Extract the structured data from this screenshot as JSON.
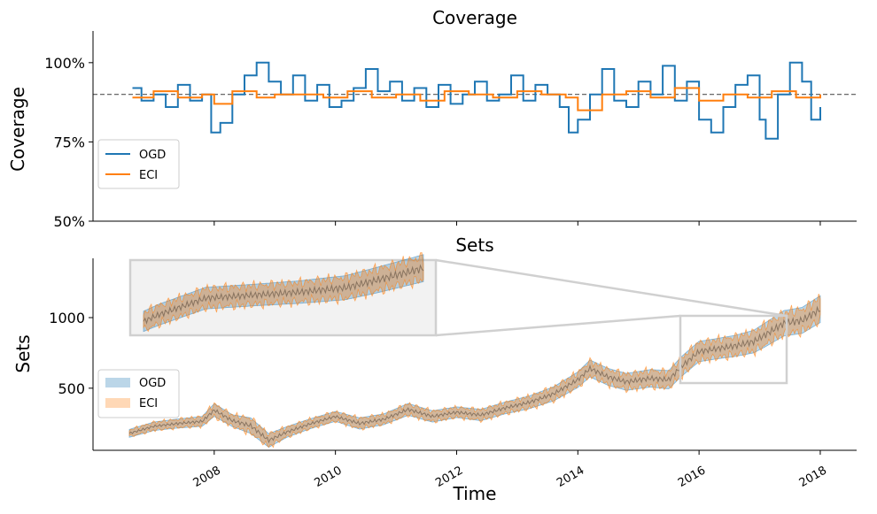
{
  "chart_data": [
    {
      "type": "line",
      "title": "Coverage",
      "xlabel": "",
      "ylabel": "Coverage",
      "xlim": [
        2006.0,
        2018.6
      ],
      "ylim": [
        0.5,
        1.1
      ],
      "yticks": [
        0.5,
        0.75,
        1.0
      ],
      "yticklabels": [
        "50%",
        "75%",
        "100%"
      ],
      "xticks": [
        2008,
        2010,
        2012,
        2014,
        2016,
        2018
      ],
      "reference_line": 0.9,
      "legend": "lower-left",
      "series": [
        {
          "name": "OGD",
          "color": "#1f77b4",
          "x": [
            2006.65,
            2006.8,
            2007.0,
            2007.2,
            2007.4,
            2007.6,
            2007.8,
            2007.95,
            2008.1,
            2008.3,
            2008.5,
            2008.7,
            2008.9,
            2009.1,
            2009.3,
            2009.5,
            2009.7,
            2009.9,
            2010.1,
            2010.3,
            2010.5,
            2010.7,
            2010.9,
            2011.1,
            2011.3,
            2011.5,
            2011.7,
            2011.9,
            2012.1,
            2012.3,
            2012.5,
            2012.7,
            2012.9,
            2013.1,
            2013.3,
            2013.5,
            2013.7,
            2013.85,
            2014.0,
            2014.2,
            2014.4,
            2014.6,
            2014.8,
            2015.0,
            2015.2,
            2015.4,
            2015.6,
            2015.8,
            2016.0,
            2016.2,
            2016.4,
            2016.6,
            2016.8,
            2017.0,
            2017.1,
            2017.3,
            2017.5,
            2017.7,
            2017.85,
            2018.0
          ],
          "values": [
            0.92,
            0.88,
            0.9,
            0.86,
            0.93,
            0.88,
            0.9,
            0.78,
            0.81,
            0.9,
            0.96,
            1.0,
            0.94,
            0.9,
            0.96,
            0.88,
            0.93,
            0.86,
            0.88,
            0.92,
            0.98,
            0.91,
            0.94,
            0.88,
            0.92,
            0.86,
            0.93,
            0.87,
            0.9,
            0.94,
            0.88,
            0.9,
            0.96,
            0.88,
            0.93,
            0.9,
            0.86,
            0.78,
            0.82,
            0.9,
            0.98,
            0.88,
            0.86,
            0.94,
            0.9,
            0.99,
            0.88,
            0.94,
            0.82,
            0.78,
            0.86,
            0.93,
            0.96,
            0.82,
            0.76,
            0.9,
            1.0,
            0.94,
            0.82,
            0.86
          ]
        },
        {
          "name": "ECI",
          "color": "#ff7f0e",
          "x": [
            2006.65,
            2007.0,
            2007.4,
            2007.8,
            2008.0,
            2008.3,
            2008.7,
            2009.0,
            2009.4,
            2009.8,
            2010.2,
            2010.6,
            2011.0,
            2011.4,
            2011.8,
            2012.2,
            2012.6,
            2013.0,
            2013.4,
            2013.8,
            2014.0,
            2014.4,
            2014.8,
            2015.2,
            2015.6,
            2016.0,
            2016.4,
            2016.8,
            2017.2,
            2017.6,
            2018.0
          ],
          "values": [
            0.89,
            0.91,
            0.89,
            0.9,
            0.87,
            0.91,
            0.89,
            0.9,
            0.9,
            0.89,
            0.91,
            0.89,
            0.9,
            0.88,
            0.91,
            0.9,
            0.89,
            0.91,
            0.9,
            0.89,
            0.85,
            0.9,
            0.91,
            0.89,
            0.92,
            0.88,
            0.9,
            0.89,
            0.91,
            0.89,
            0.9
          ]
        }
      ]
    },
    {
      "type": "area",
      "title": "Sets",
      "xlabel": "Time",
      "ylabel": "Sets",
      "xlim": [
        2006.0,
        2018.6
      ],
      "ylim": [
        60,
        1420
      ],
      "yticks": [
        500,
        1000
      ],
      "yticklabels": [
        "500",
        "1000"
      ],
      "xticks": [
        2008,
        2010,
        2012,
        2014,
        2016,
        2018
      ],
      "xticklabels": [
        "2008",
        "2010",
        "2012",
        "2014",
        "2016",
        "2018"
      ],
      "legend": "lower-left",
      "inset": {
        "xlim": [
          2015.6,
          2017.4
        ],
        "ylim": [
          530,
          990
        ]
      },
      "series": [
        {
          "name": "OGD",
          "color": "#1f77b4",
          "x": [
            2006.6,
            2007.0,
            2007.4,
            2007.8,
            2008.0,
            2008.3,
            2008.6,
            2008.9,
            2009.2,
            2009.6,
            2010.0,
            2010.4,
            2010.8,
            2011.2,
            2011.6,
            2012.0,
            2012.4,
            2012.8,
            2013.2,
            2013.6,
            2014.0,
            2014.2,
            2014.5,
            2014.8,
            2015.2,
            2015.5,
            2015.7,
            2016.0,
            2016.3,
            2016.6,
            2016.9,
            2017.1,
            2017.4,
            2017.7,
            2018.0
          ],
          "values": [
            180,
            230,
            250,
            265,
            345,
            270,
            235,
            130,
            190,
            250,
            300,
            250,
            280,
            350,
            300,
            330,
            310,
            360,
            400,
            460,
            560,
            640,
            580,
            545,
            570,
            560,
            650,
            760,
            780,
            800,
            830,
            880,
            960,
            980,
            1060
          ],
          "band": [
            28,
            30,
            32,
            35,
            45,
            42,
            55,
            48,
            38,
            35,
            35,
            40,
            38,
            42,
            40,
            38,
            40,
            42,
            45,
            50,
            55,
            60,
            60,
            60,
            62,
            65,
            70,
            72,
            72,
            75,
            80,
            85,
            90,
            92,
            95
          ]
        },
        {
          "name": "ECI",
          "color": "#ff7f0e",
          "x": [
            2006.6,
            2007.0,
            2007.4,
            2007.8,
            2008.0,
            2008.3,
            2008.6,
            2008.9,
            2009.2,
            2009.6,
            2010.0,
            2010.4,
            2010.8,
            2011.2,
            2011.6,
            2012.0,
            2012.4,
            2012.8,
            2013.2,
            2013.6,
            2014.0,
            2014.2,
            2014.5,
            2014.8,
            2015.2,
            2015.5,
            2015.7,
            2016.0,
            2016.3,
            2016.6,
            2016.9,
            2017.1,
            2017.4,
            2017.7,
            2018.0
          ],
          "values": [
            180,
            230,
            250,
            265,
            345,
            270,
            235,
            130,
            190,
            250,
            300,
            250,
            280,
            350,
            300,
            330,
            310,
            360,
            400,
            460,
            560,
            640,
            580,
            545,
            570,
            560,
            650,
            760,
            780,
            800,
            830,
            880,
            960,
            980,
            1060
          ],
          "band": [
            30,
            34,
            36,
            40,
            55,
            50,
            65,
            55,
            42,
            40,
            40,
            45,
            42,
            48,
            45,
            42,
            46,
            48,
            52,
            58,
            62,
            66,
            66,
            66,
            70,
            72,
            78,
            80,
            80,
            82,
            88,
            92,
            96,
            98,
            100
          ]
        }
      ]
    }
  ]
}
